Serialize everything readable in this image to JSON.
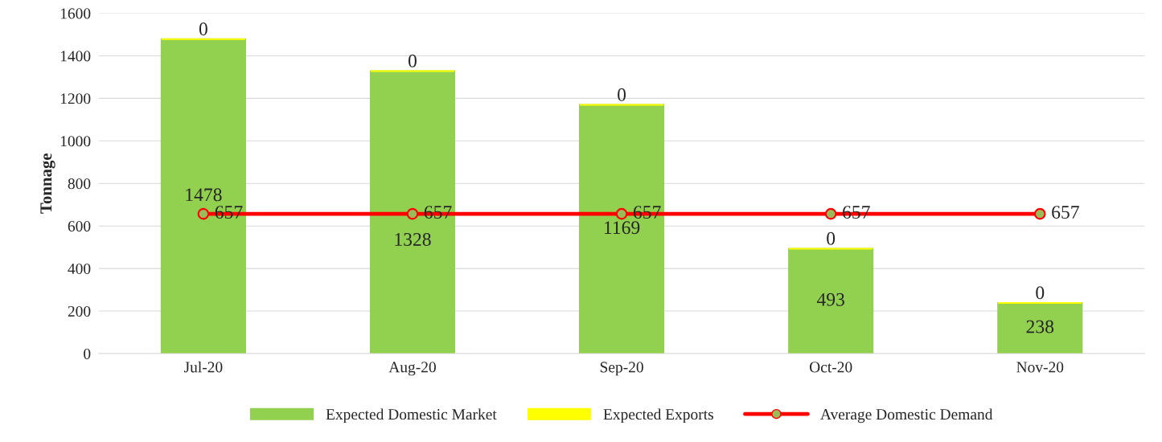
{
  "chart_data": {
    "type": "bar",
    "ylabel": "Tonnage",
    "categories": [
      "Jul-20",
      "Aug-20",
      "Sep-20",
      "Oct-20",
      "Nov-20"
    ],
    "stacked": true,
    "series": [
      {
        "name": "Expected Domestic Market",
        "color": "#92d050",
        "values": [
          1478,
          1328,
          1169,
          493,
          238
        ]
      },
      {
        "name": "Expected Exports",
        "color": "#ffff00",
        "values": [
          0,
          0,
          0,
          0,
          0
        ]
      },
      {
        "name": "Average Domestic Demand",
        "type": "line",
        "color": "#ff0000",
        "values": [
          657,
          657,
          657,
          657,
          657
        ]
      }
    ],
    "marker": "circle",
    "ylim": [
      0,
      1600
    ],
    "yticks": [
      0,
      200,
      400,
      600,
      800,
      1000,
      1200,
      1400,
      1600
    ],
    "grid": "y",
    "legend": "bottom",
    "data_labels": true
  }
}
